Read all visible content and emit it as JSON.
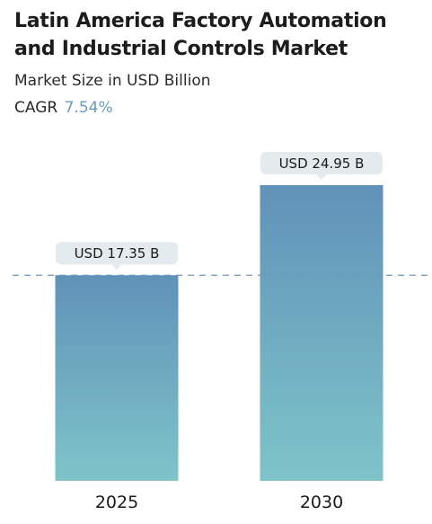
{
  "chart_data": {
    "type": "bar",
    "title": "Latin America Factory Automation and Industrial Controls Market",
    "subtitle": "Market Size in USD Billion",
    "cagr_label": "CAGR",
    "cagr_value": "7.54%",
    "categories": [
      "2025",
      "2030"
    ],
    "values": [
      17.35,
      24.95
    ],
    "value_labels": [
      "USD 17.35 B",
      "USD 24.95 B"
    ],
    "reference_line": {
      "value": 17.35,
      "style": "dashed"
    },
    "xlabel": "",
    "ylabel": "",
    "grid": false,
    "legend": "none"
  },
  "colors": {
    "bar_top": "#6092b8",
    "bar_bottom": "#7ec4c9",
    "label_bg": "#e4ebee",
    "dashed_line": "#6f99bd",
    "accent": "#6a9bbd"
  }
}
